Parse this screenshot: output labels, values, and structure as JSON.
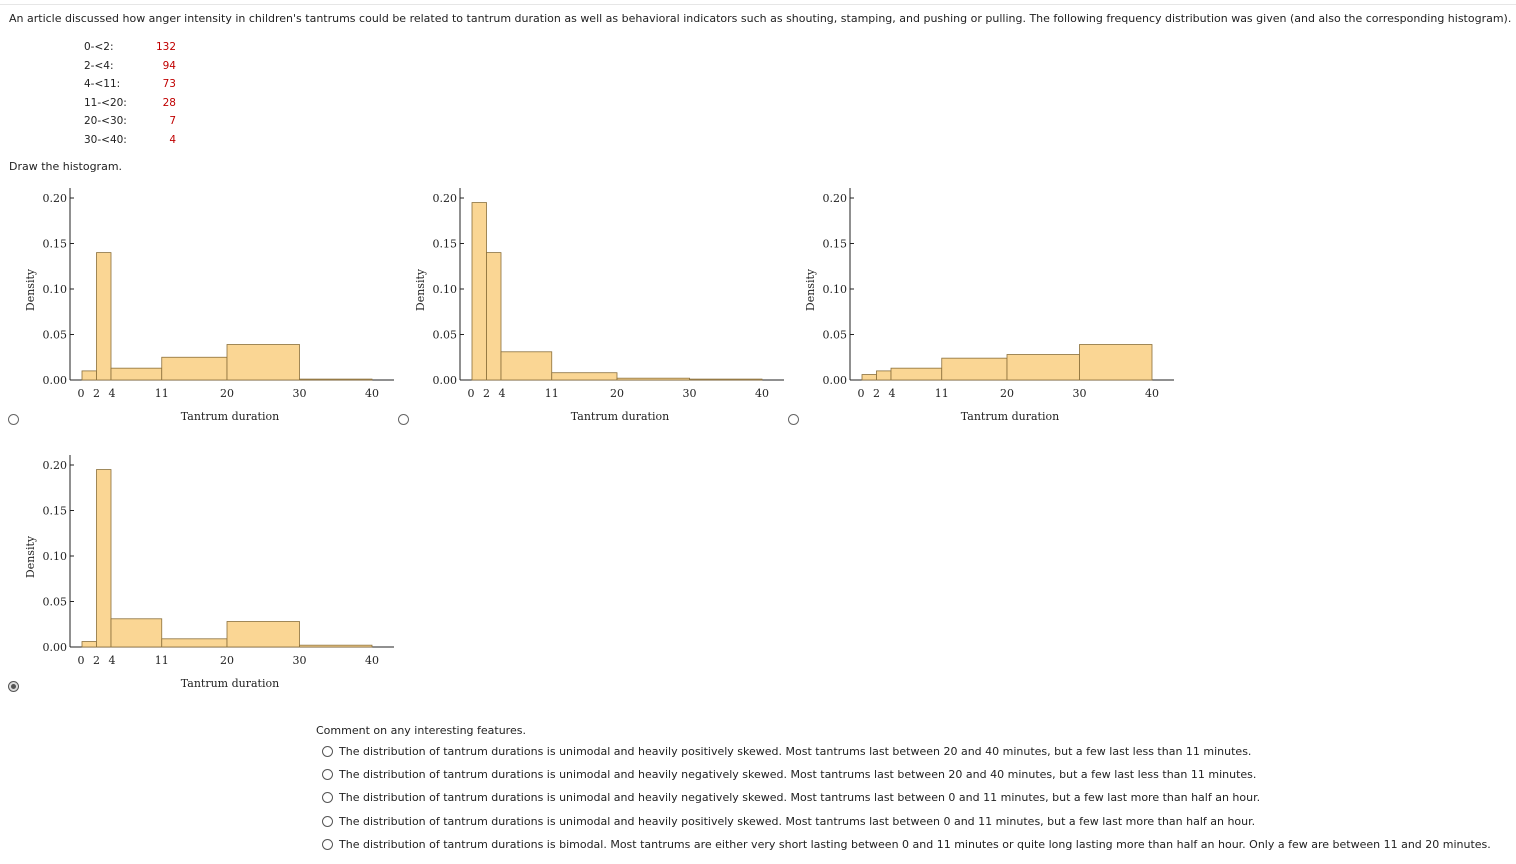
{
  "intro_text": "An article discussed how anger intensity in children's tantrums could be related to tantrum duration as well as behavioral indicators such as shouting, stamping, and pushing or pulling. The following frequency distribution was given (and also the corresponding histogram).",
  "frequency_table": [
    {
      "class": "0-<2:",
      "count": "132"
    },
    {
      "class": "2-<4:",
      "count": "94"
    },
    {
      "class": "4-<11:",
      "count": "73"
    },
    {
      "class": "11-<20:",
      "count": "28"
    },
    {
      "class": "20-<30:",
      "count": "7"
    },
    {
      "class": "30-<40:",
      "count": "4"
    }
  ],
  "draw_prompt": "Draw the histogram.",
  "comment_prompt": "Comment on any interesting features.",
  "comment_options": [
    "The distribution of tantrum durations is unimodal and heavily positively skewed. Most tantrums last between 20 and 40 minutes, but a few last less than 11 minutes.",
    "The distribution of tantrum durations is unimodal and heavily negatively skewed. Most tantrums last between 20 and 40 minutes, but a few last less than 11 minutes.",
    "The distribution of tantrum durations is unimodal and heavily negatively skewed. Most tantrums last between 0 and 11 minutes, but a few last more than half an hour.",
    "The distribution of tantrum durations is unimodal and heavily positively skewed. Most tantrums last between 0 and 11 minutes, but a few last more than half an hour.",
    "The distribution of tantrum durations is bimodal. Most tantrums are either very short lasting between 0 and 11 minutes or quite long lasting more than half an hour. Only a few are between 11 and 20 minutes."
  ],
  "histogram_options_selected": 3,
  "chart_data": [
    {
      "type": "bar",
      "title": "",
      "xlabel": "Tantrum duration",
      "ylabel": "Density",
      "ylim": [
        0,
        0.2
      ],
      "xticks": [
        "0",
        "2",
        "4",
        "11",
        "20",
        "30",
        "40"
      ],
      "yticks": [
        "0.00",
        "0.05",
        "0.10",
        "0.15",
        "0.20"
      ],
      "bins": [
        [
          0,
          2
        ],
        [
          2,
          4
        ],
        [
          4,
          11
        ],
        [
          11,
          20
        ],
        [
          20,
          30
        ],
        [
          30,
          40
        ]
      ],
      "values": [
        0.01,
        0.14,
        0.013,
        0.025,
        0.039,
        0.001
      ]
    },
    {
      "type": "bar",
      "title": "",
      "xlabel": "Tantrum duration",
      "ylabel": "Density",
      "ylim": [
        0,
        0.2
      ],
      "xticks": [
        "0",
        "2",
        "4",
        "11",
        "20",
        "30",
        "40"
      ],
      "yticks": [
        "0.00",
        "0.05",
        "0.10",
        "0.15",
        "0.20"
      ],
      "bins": [
        [
          0,
          2
        ],
        [
          2,
          4
        ],
        [
          4,
          11
        ],
        [
          11,
          20
        ],
        [
          20,
          30
        ],
        [
          30,
          40
        ]
      ],
      "values": [
        0.195,
        0.14,
        0.031,
        0.008,
        0.002,
        0.001
      ]
    },
    {
      "type": "bar",
      "title": "",
      "xlabel": "Tantrum duration",
      "ylabel": "Density",
      "ylim": [
        0,
        0.2
      ],
      "xticks": [
        "0",
        "2",
        "4",
        "11",
        "20",
        "30",
        "40"
      ],
      "yticks": [
        "0.00",
        "0.05",
        "0.10",
        "0.15",
        "0.20"
      ],
      "bins": [
        [
          0,
          2
        ],
        [
          2,
          4
        ],
        [
          4,
          11
        ],
        [
          11,
          20
        ],
        [
          20,
          30
        ],
        [
          30,
          40
        ]
      ],
      "values": [
        0.006,
        0.01,
        0.013,
        0.024,
        0.028,
        0.039
      ]
    },
    {
      "type": "bar",
      "title": "",
      "xlabel": "Tantrum duration",
      "ylabel": "Density",
      "ylim": [
        0,
        0.2
      ],
      "xticks": [
        "0",
        "2",
        "4",
        "11",
        "20",
        "30",
        "40"
      ],
      "yticks": [
        "0.00",
        "0.05",
        "0.10",
        "0.15",
        "0.20"
      ],
      "bins": [
        [
          0,
          2
        ],
        [
          2,
          4
        ],
        [
          4,
          11
        ],
        [
          11,
          20
        ],
        [
          20,
          30
        ],
        [
          30,
          40
        ]
      ],
      "values": [
        0.006,
        0.195,
        0.031,
        0.009,
        0.028,
        0.002
      ]
    }
  ],
  "colors": {
    "bar_fill": "#fad694",
    "bar_stroke": "#8a6f3a"
  }
}
